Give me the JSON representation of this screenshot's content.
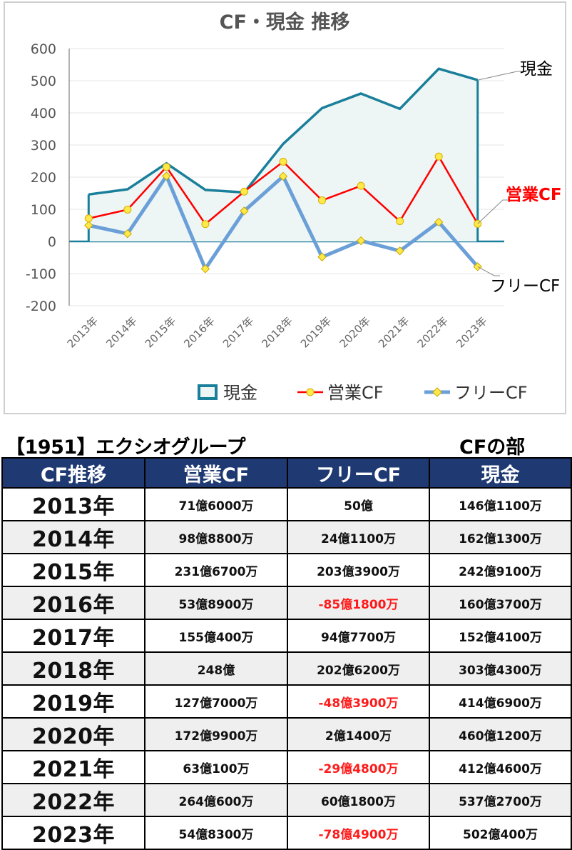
{
  "chart_data": {
    "type": "line",
    "title": "CF・現金 推移",
    "categories": [
      "2013年",
      "2014年",
      "2015年",
      "2016年",
      "2017年",
      "2018年",
      "2019年",
      "2020年",
      "2021年",
      "2022年",
      "2023年"
    ],
    "ylim": [
      -200,
      600
    ],
    "yticks": [
      600,
      500,
      400,
      300,
      200,
      100,
      0,
      -100,
      -200
    ],
    "grid": true,
    "legend_position": "bottom",
    "series": [
      {
        "name": "現金",
        "values": [
          146.11,
          162.13,
          242.91,
          160.37,
          152.41,
          303.43,
          414.69,
          460.12,
          412.46,
          537.27,
          502.04
        ],
        "color": "#1a7f9a",
        "style": "area-line"
      },
      {
        "name": "営業CF",
        "values": [
          71.6,
          98.88,
          231.67,
          53.89,
          155.04,
          248,
          127.7,
          172.99,
          63.01,
          264.06,
          54.83
        ],
        "color": "#ff0000",
        "style": "line-marker"
      },
      {
        "name": "フリーCF",
        "values": [
          50,
          24.11,
          203.39,
          -85.18,
          94.77,
          202.62,
          -48.39,
          2.14,
          -29.48,
          60.18,
          -78.49
        ],
        "color": "#6a9fd8",
        "style": "line-marker"
      }
    ],
    "end_labels": [
      "現金",
      "営業CF",
      "フリーCF"
    ],
    "end_label_colors": [
      "#000000",
      "#ff0000",
      "#000000"
    ]
  },
  "company_title": "【1951】エクシオグループ",
  "section_title": "CFの部",
  "table": {
    "headers": [
      "CF推移",
      "営業CF",
      "フリーCF",
      "現金"
    ],
    "rows": [
      {
        "year": "2013年",
        "op": "71億6000万",
        "free": "50億",
        "cash": "146億1100万",
        "neg": false
      },
      {
        "year": "2014年",
        "op": "98億8800万",
        "free": "24億1100万",
        "cash": "162億1300万",
        "neg": false
      },
      {
        "year": "2015年",
        "op": "231億6700万",
        "free": "203億3900万",
        "cash": "242億9100万",
        "neg": false
      },
      {
        "year": "2016年",
        "op": "53億8900万",
        "free": "-85億1800万",
        "cash": "160億3700万",
        "neg": true
      },
      {
        "year": "2017年",
        "op": "155億400万",
        "free": "94億7700万",
        "cash": "152億4100万",
        "neg": false
      },
      {
        "year": "2018年",
        "op": "248億",
        "free": "202億6200万",
        "cash": "303億4300万",
        "neg": false
      },
      {
        "year": "2019年",
        "op": "127億7000万",
        "free": "-48億3900万",
        "cash": "414億6900万",
        "neg": true
      },
      {
        "year": "2020年",
        "op": "172億9900万",
        "free": "2億1400万",
        "cash": "460億1200万",
        "neg": false
      },
      {
        "year": "2021年",
        "op": "63億100万",
        "free": "-29億4800万",
        "cash": "412億4600万",
        "neg": true
      },
      {
        "year": "2022年",
        "op": "264億600万",
        "free": "60億1800万",
        "cash": "537億2700万",
        "neg": false
      },
      {
        "year": "2023年",
        "op": "54億8300万",
        "free": "-78億4900万",
        "cash": "502億400万",
        "neg": true
      }
    ]
  }
}
